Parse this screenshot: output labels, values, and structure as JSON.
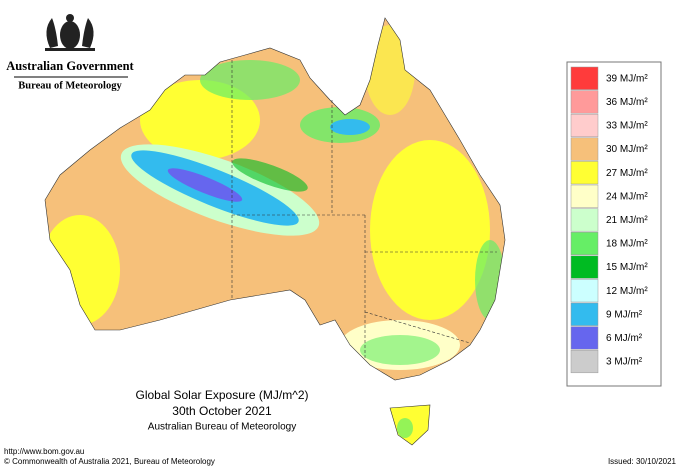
{
  "header": {
    "government": "Australian Government",
    "bureau": "Bureau of Meteorology"
  },
  "map": {
    "title": "Global Solar Exposure (MJ/m^2)",
    "date": "30th October 2021",
    "source": "Australian Bureau of Meteorology"
  },
  "legend": [
    {
      "value": 39,
      "label": "39 MJ/m²",
      "color": "#ff3b3b"
    },
    {
      "value": 36,
      "label": "36 MJ/m²",
      "color": "#ff9a9a"
    },
    {
      "value": 33,
      "label": "33 MJ/m²",
      "color": "#ffcccc"
    },
    {
      "value": 30,
      "label": "30 MJ/m²",
      "color": "#f6c07a"
    },
    {
      "value": 27,
      "label": "27 MJ/m²",
      "color": "#ffff33"
    },
    {
      "value": 24,
      "label": "24 MJ/m²",
      "color": "#ffffc8"
    },
    {
      "value": 21,
      "label": "21 MJ/m²",
      "color": "#ccffcc"
    },
    {
      "value": 18,
      "label": "18 MJ/m²",
      "color": "#66ee66"
    },
    {
      "value": 15,
      "label": "15 MJ/m²",
      "color": "#00bb22"
    },
    {
      "value": 12,
      "label": "12 MJ/m²",
      "color": "#ccffff"
    },
    {
      "value": 9,
      "label": "9 MJ/m²",
      "color": "#33bbee"
    },
    {
      "value": 6,
      "label": "6 MJ/m²",
      "color": "#6666ee"
    },
    {
      "value": 3,
      "label": "3 MJ/m²",
      "color": "#cccccc"
    }
  ],
  "footer": {
    "url": "http://www.bom.gov.au",
    "copyright": "© Commonwealth of Australia 2021, Bureau of Meteorology",
    "issued": "Issued: 30/10/2021"
  }
}
